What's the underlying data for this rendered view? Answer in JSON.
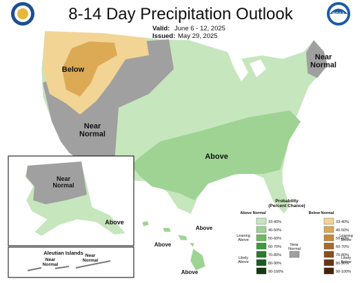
{
  "header": {
    "title": "8-14 Day Precipitation Outlook",
    "valid_label": "Valid:",
    "valid": "June 6 - 12, 2025",
    "issued_label": "Issued:",
    "issued": "May 29, 2025"
  },
  "logos": {
    "noaa": "NOAA"
  },
  "map_labels": {
    "below_west": "Below",
    "near_west": [
      "Near",
      "Normal"
    ],
    "above_south": "Above",
    "near_northeast": [
      "Near",
      "Normal"
    ],
    "alaska_near": [
      "Near",
      "Normal"
    ],
    "alaska_above": "Above",
    "aleutian_title": "Aleutian Islands",
    "aleutian_near_1": [
      "Near",
      "Normal"
    ],
    "aleutian_near_2": [
      "Near",
      "Normal"
    ],
    "hawaii_above_1": "Above",
    "hawaii_above_2": "Above",
    "hawaii_above_3": "Above"
  },
  "legend": {
    "title": [
      "Probability",
      "(Percent Chance)"
    ],
    "above_header": "Above Normal",
    "below_header": "Below Normal",
    "leaning_above": [
      "Leaning",
      "Above"
    ],
    "likely_above": [
      "Likely",
      "Above"
    ],
    "near": [
      "Near",
      "Normal"
    ],
    "near_color": "#a0a0a0",
    "leaning_below": [
      "Leaning",
      "Below"
    ],
    "likely_below": [
      "Likely",
      "Below"
    ],
    "above": [
      {
        "label": "33-40%",
        "color": "#c6e6bd"
      },
      {
        "label": "40-50%",
        "color": "#9ed393"
      },
      {
        "label": "50-60%",
        "color": "#6cbb5f"
      },
      {
        "label": "60-70%",
        "color": "#3f9a3b"
      },
      {
        "label": "70-80%",
        "color": "#2c7a2f"
      },
      {
        "label": "80-90%",
        "color": "#1d5c21"
      },
      {
        "label": "90-100%",
        "color": "#0f3c12"
      }
    ],
    "below": [
      {
        "label": "33-40%",
        "color": "#f2d495"
      },
      {
        "label": "40-50%",
        "color": "#dcaa55"
      },
      {
        "label": "50-60%",
        "color": "#c78a3b"
      },
      {
        "label": "60-70%",
        "color": "#a66b2a"
      },
      {
        "label": "70-80%",
        "color": "#884e1e"
      },
      {
        "label": "80-90%",
        "color": "#6a3514"
      },
      {
        "label": "90-100%",
        "color": "#4a220a"
      }
    ]
  }
}
